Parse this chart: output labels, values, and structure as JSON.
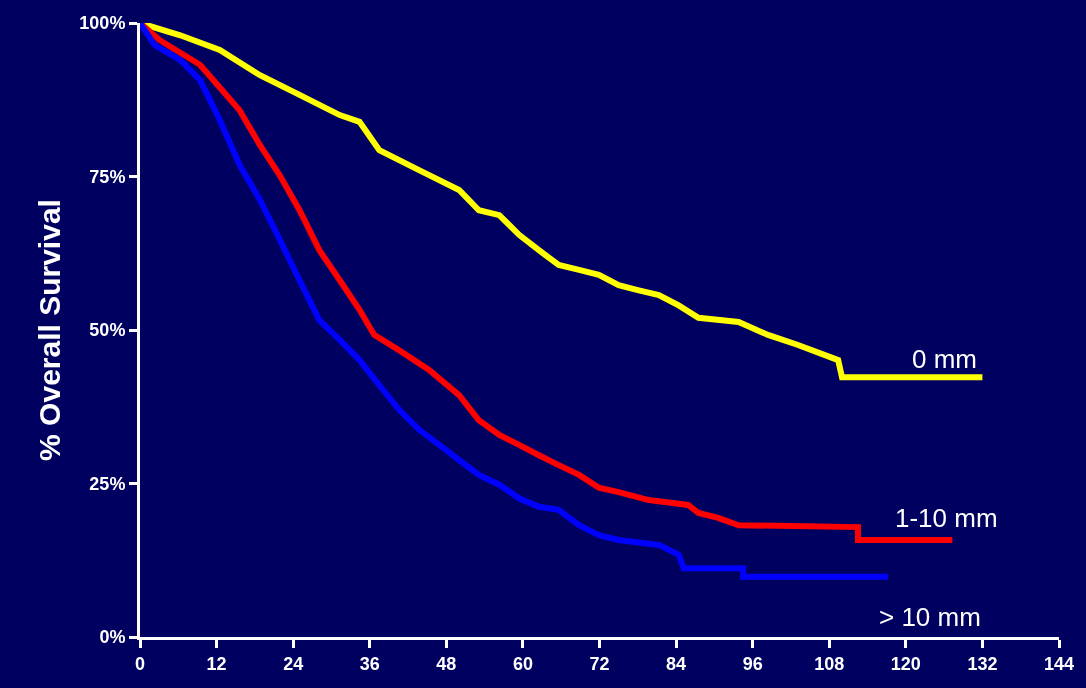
{
  "chart_data": {
    "type": "line",
    "ylabel": "% Overall Survival",
    "xlim": [
      0,
      144
    ],
    "xticks": [
      0,
      12,
      24,
      36,
      48,
      60,
      72,
      84,
      96,
      108,
      120,
      132,
      144
    ],
    "ylim": [
      0,
      100
    ],
    "yticks": [
      {
        "value": 0,
        "label": "0%"
      },
      {
        "value": 25,
        "label": "25%"
      },
      {
        "value": 50,
        "label": "50%"
      },
      {
        "value": 75,
        "label": "75%"
      },
      {
        "value": 100,
        "label": "100%"
      }
    ],
    "grid": false,
    "legend": false,
    "marker": "none",
    "line_style": "solid",
    "series": [
      {
        "name": "0 mm",
        "color": "#ffff00",
        "x": [
          0,
          6.3,
          12.5,
          18.8,
          25,
          31.3,
          34.4,
          37.5,
          43.8,
          50,
          53.1,
          56.3,
          59.4,
          62.5,
          65.6,
          68.8,
          71.9,
          75,
          78,
          81.3,
          84.4,
          87.5,
          93.8,
          98.4,
          103,
          109.4,
          110,
          132
        ],
        "values": [
          100,
          98,
          95.6,
          91.5,
          88.3,
          85,
          83.9,
          79.3,
          76,
          72.8,
          69.5,
          68.7,
          65.5,
          63,
          60.6,
          59.8,
          59,
          57.3,
          56.5,
          55.7,
          54,
          52,
          51.3,
          49.2,
          47.6,
          45.1,
          42.3,
          42.3
        ]
      },
      {
        "name": "1-10 mm",
        "color": "#ff0000",
        "x": [
          0,
          3.1,
          9.4,
          15.6,
          18.8,
          21.9,
          25,
          28.1,
          31.3,
          34.4,
          36.7,
          40.6,
          45.3,
          50,
          53.1,
          56.3,
          59.4,
          62.5,
          65.6,
          68.8,
          71.9,
          75,
          79.7,
          85.9,
          87.5,
          90.6,
          93.8,
          112.5,
          112.5,
          127.3
        ],
        "values": [
          100,
          97.2,
          93.2,
          85.8,
          80.1,
          75.2,
          69.5,
          63,
          58.1,
          53.3,
          49.2,
          46.7,
          43.5,
          39.4,
          35.3,
          32.9,
          31.3,
          29.6,
          28,
          26.4,
          24.3,
          23.6,
          22.3,
          21.5,
          20.2,
          19.4,
          18.2,
          17.9,
          15.8,
          15.8
        ]
      },
      {
        "name": "> 10 mm",
        "color": "#0000ff",
        "x": [
          0,
          2.3,
          6.3,
          9.4,
          12.5,
          15.6,
          18.8,
          21.9,
          25,
          28.1,
          31.3,
          34.4,
          37.5,
          40.6,
          43.8,
          46.9,
          50,
          53.1,
          56.3,
          59.4,
          62.5,
          65.6,
          68.8,
          71.9,
          75,
          81.3,
          84.4,
          85.2,
          94.5,
          94.5,
          117.2
        ],
        "values": [
          100,
          96.4,
          94,
          90.7,
          84.2,
          76.9,
          71.2,
          64.7,
          58.1,
          51.6,
          48.4,
          45.1,
          41,
          37,
          33.7,
          31.3,
          28.8,
          26.4,
          24.8,
          22.6,
          21.2,
          20.7,
          18.2,
          16.6,
          15.8,
          15,
          13.4,
          11.2,
          11.2,
          9.8,
          9.8
        ]
      }
    ]
  }
}
